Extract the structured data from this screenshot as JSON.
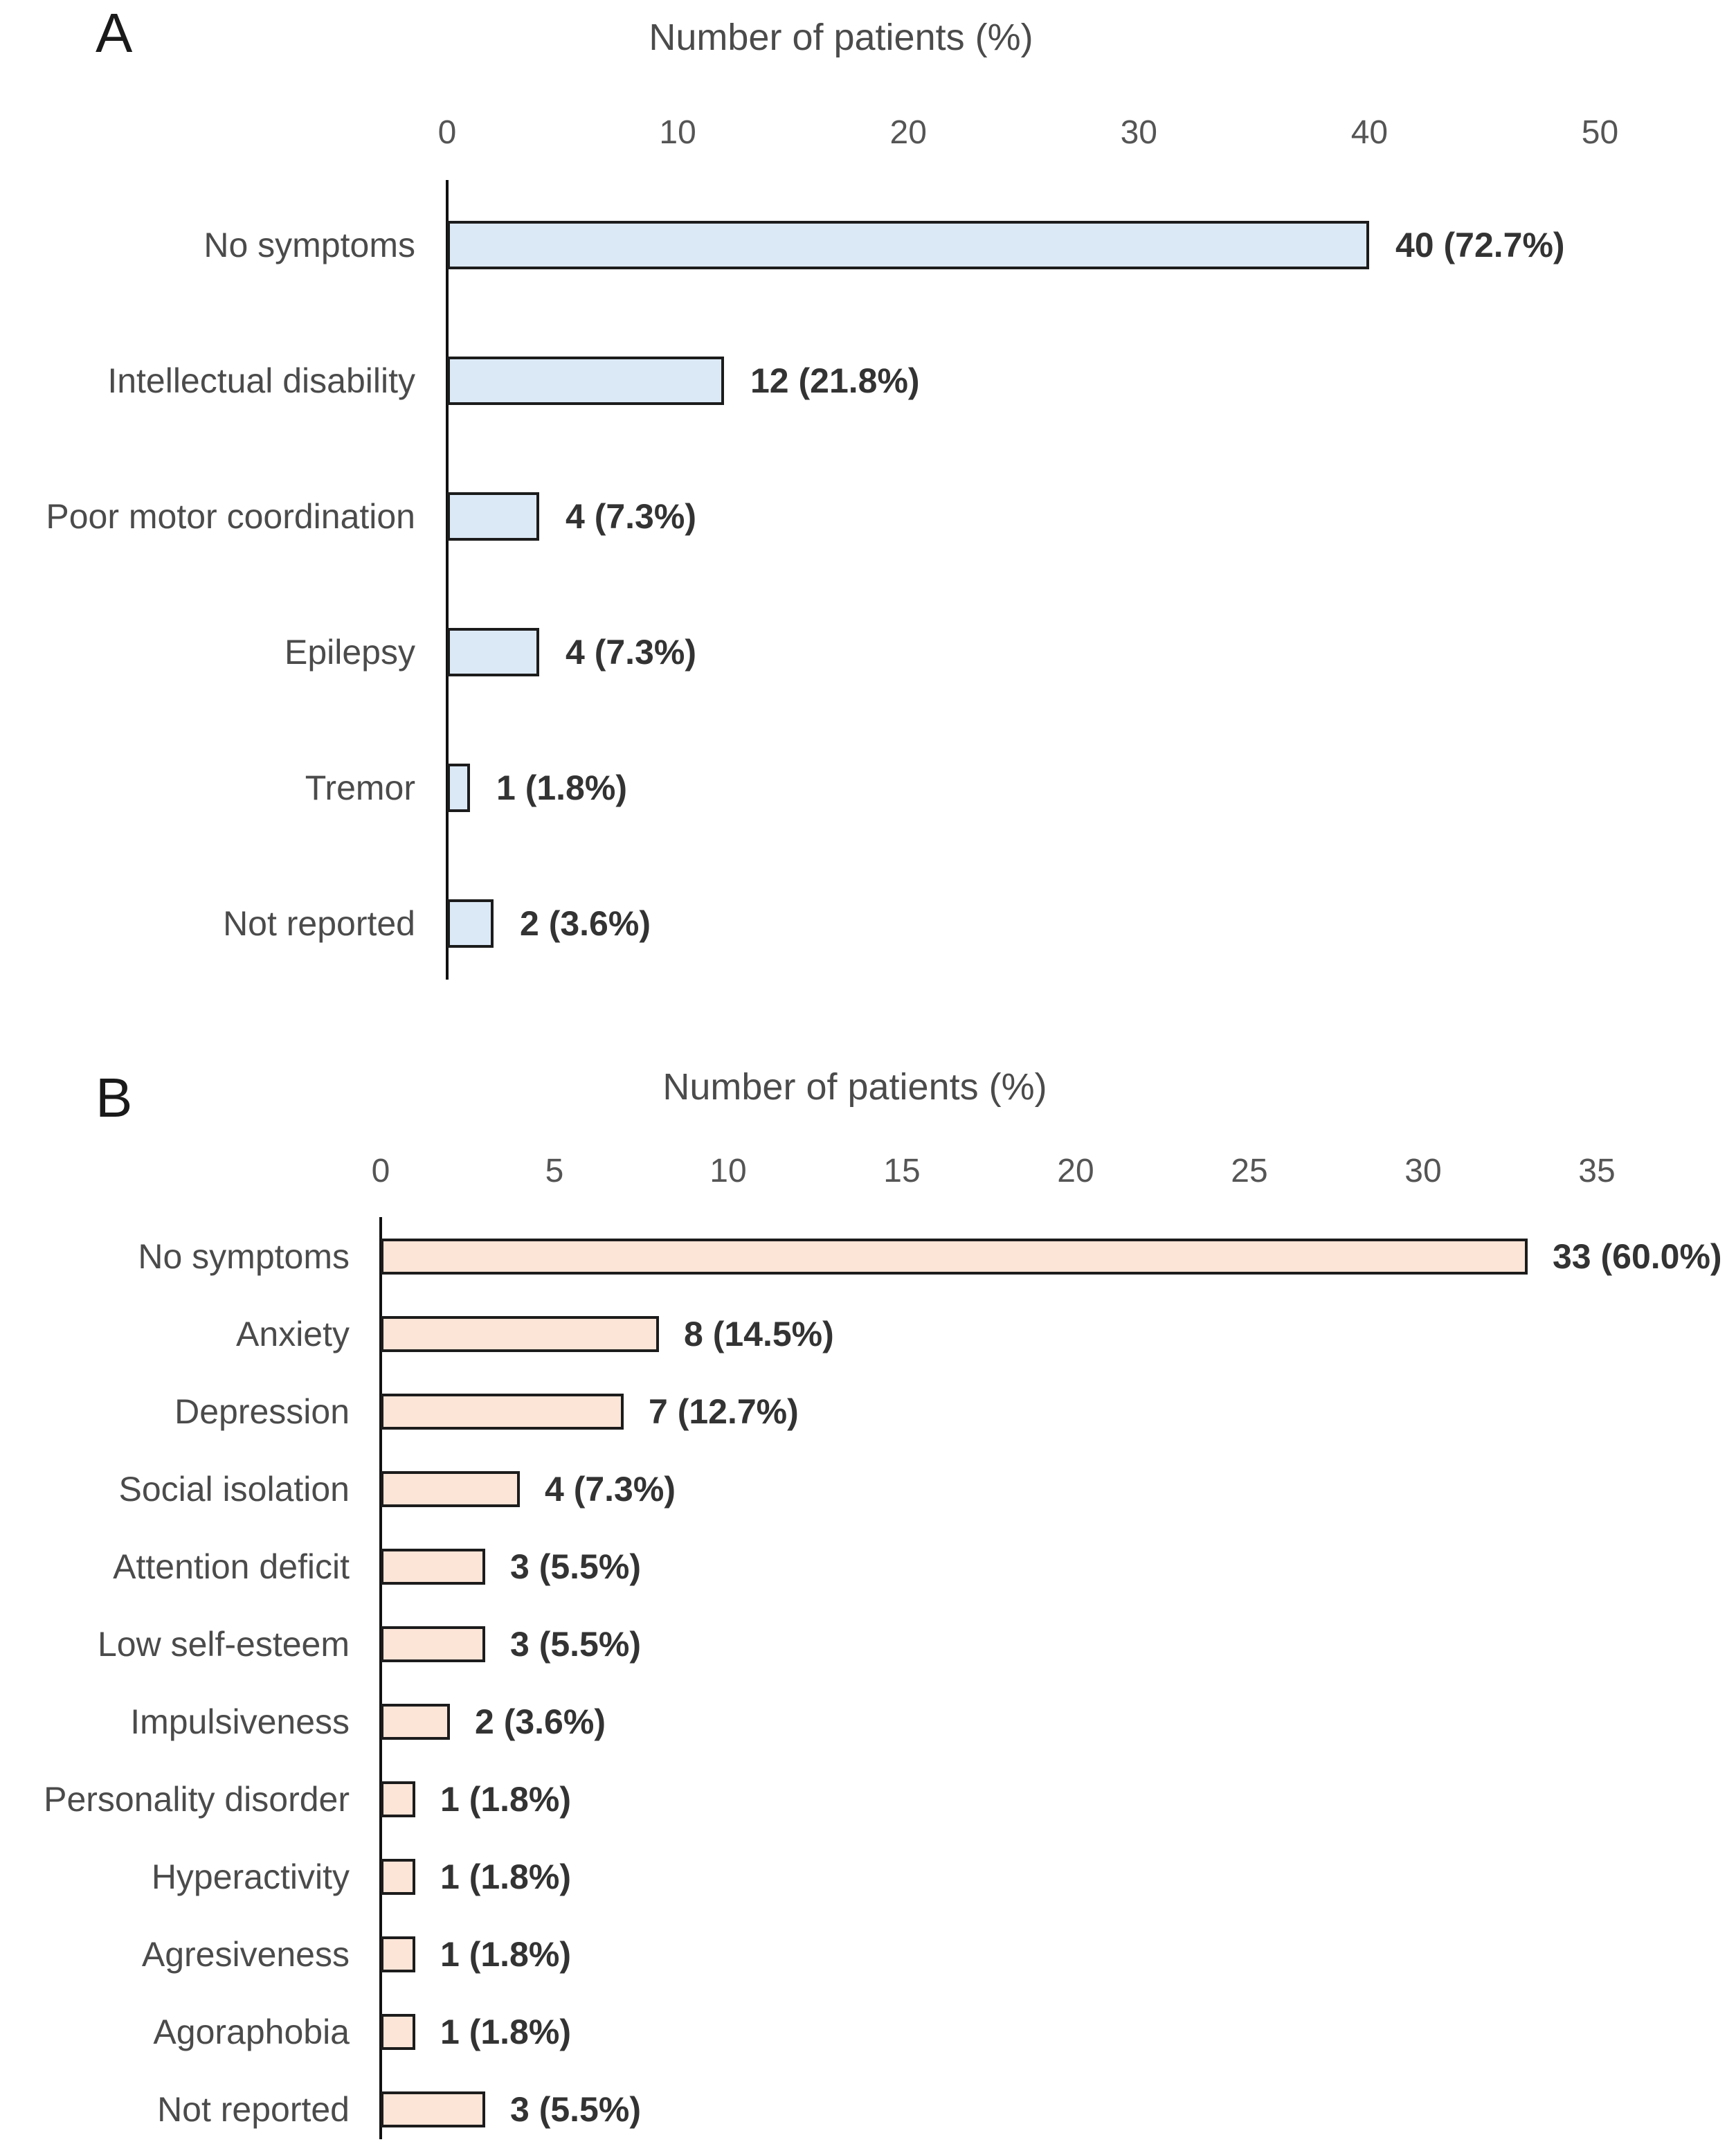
{
  "figure_caption": "Two-panel horizontal bar figure of patient symptoms",
  "chart_data": [
    {
      "type": "bar",
      "orientation": "horizontal",
      "panel": "A",
      "title": "Number of patients (%)",
      "categories": [
        "No symptoms",
        "Intellectual disability",
        "Poor motor coordination",
        "Epilepsy",
        "Tremor",
        "Not reported"
      ],
      "values": [
        40,
        12,
        4,
        4,
        1,
        2
      ],
      "value_labels": [
        "40 (72.7%)",
        "12 (21.8%)",
        "4 (7.3%)",
        "4 (7.3%)",
        "1 (1.8%)",
        "2 (3.6%)"
      ],
      "xlabel": "Number of patients (%)",
      "xticks": [
        0,
        10,
        20,
        30,
        40,
        50
      ],
      "xlim": [
        0,
        56
      ],
      "grid": false,
      "legend": false,
      "bar_fill": "#dbe9f7",
      "bar_border": "#1c1c1c"
    },
    {
      "type": "bar",
      "orientation": "horizontal",
      "panel": "B",
      "title": "Number of patients (%)",
      "categories": [
        "No symptoms",
        "Anxiety",
        "Depression",
        "Social isolation",
        "Attention deficit",
        "Low self-esteem",
        "Impulsiveness",
        "Personality disorder",
        "Hyperactivity",
        "Agresiveness",
        "Agoraphobia",
        "Not reported"
      ],
      "values": [
        33,
        8,
        7,
        4,
        3,
        3,
        2,
        1,
        1,
        1,
        1,
        3
      ],
      "value_labels": [
        "33 (60.0%)",
        "8 (14.5%)",
        "7 (12.7%)",
        "4 (7.3%)",
        "3 (5.5%)",
        "3 (5.5%)",
        "2 (3.6%)",
        "1 (1.8%)",
        "1 (1.8%)",
        "1 (1.8%)",
        "1 (1.8%)",
        "3 (5.5%)"
      ],
      "xlabel": "Number of patients (%)",
      "xticks": [
        0,
        5,
        10,
        15,
        20,
        25,
        30,
        35
      ],
      "xlim": [
        0,
        39
      ],
      "grid": false,
      "legend": false,
      "bar_fill": "#fce4d6",
      "bar_border": "#1c1c1c"
    }
  ]
}
